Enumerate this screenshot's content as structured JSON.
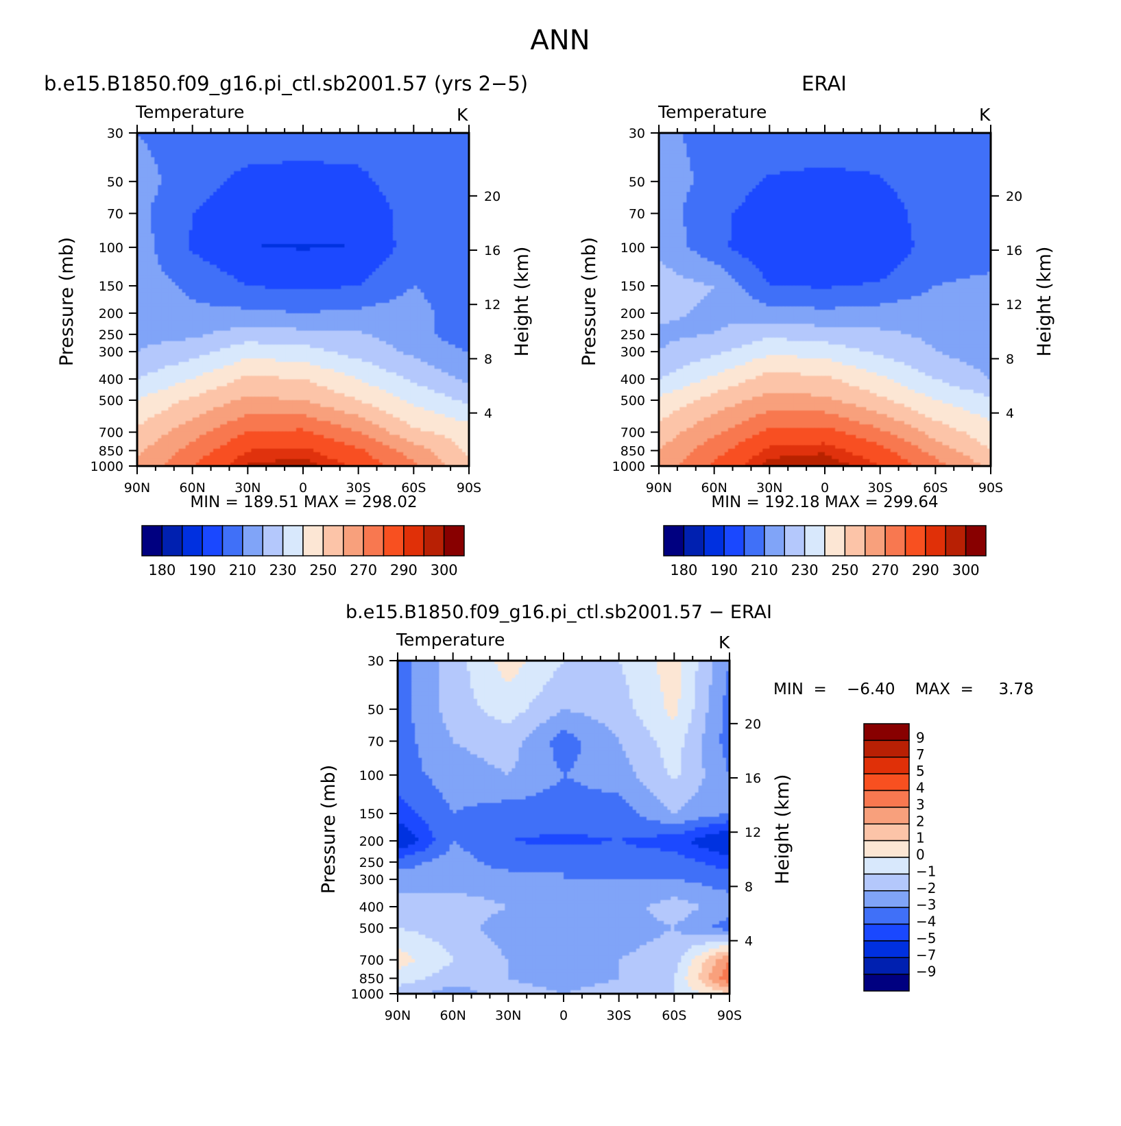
{
  "page_title": "ANN",
  "colors": {
    "temperature_scale": [
      "#000080",
      "#0020b0",
      "#0030e0",
      "#1a48ff",
      "#4070f8",
      "#80a4f8",
      "#b4c8fc",
      "#d8e8fc",
      "#fce6d4",
      "#fcc4a8",
      "#f8a07c",
      "#f87850",
      "#f85020",
      "#e03008",
      "#b82004",
      "#880000"
    ],
    "difference_scale": [
      "#000080",
      "#0020b0",
      "#0030e0",
      "#1a48ff",
      "#4070f8",
      "#80a4f8",
      "#b4c8fc",
      "#d8e8fc",
      "#fce6d4",
      "#fcc4a8",
      "#f8a07c",
      "#f87850",
      "#f85020",
      "#e03008",
      "#b82004",
      "#880000"
    ]
  },
  "panels": {
    "model": {
      "title": "b.e15.B1850.f09_g16.pi_ctl.sb2001.57 (yrs 2−5)",
      "variable_label": "Temperature",
      "units": "K",
      "min_max_text": "MIN  =  189.51    MAX  =  298.02"
    },
    "obs": {
      "title": "ERAI",
      "variable_label": "Temperature",
      "units": "K",
      "min_max_text": "MIN  =  192.18    MAX  =  299.64"
    },
    "diff": {
      "title": "b.e15.B1850.f09_g16.pi_ctl.sb2001.57  −  ERAI",
      "variable_label": "Temperature",
      "units": "K",
      "min_max_text": "MIN  =    −6.40    MAX  =     3.78"
    }
  },
  "axes": {
    "y_label": "Pressure  (mb)",
    "y2_label": "Height  (km)",
    "pressure_ticks": [
      "30",
      "50",
      "70",
      "100",
      "150",
      "200",
      "250",
      "300",
      "400",
      "500",
      "700",
      "850",
      "1000"
    ],
    "height_ticks": [
      "20",
      "16",
      "12",
      "8",
      "4"
    ],
    "lat_ticks": [
      "90N",
      "60N",
      "30N",
      "0",
      "30S",
      "60S",
      "90S"
    ]
  },
  "colorbars": {
    "temperature_labels": [
      "180",
      "190",
      "210",
      "230",
      "250",
      "270",
      "290",
      "300"
    ],
    "difference_labels": [
      "9",
      "7",
      "5",
      "4",
      "3",
      "2",
      "1",
      "0",
      "−1",
      "−2",
      "−3",
      "−4",
      "−5",
      "−7",
      "−9"
    ]
  },
  "chart_data": [
    {
      "type": "heatmap",
      "title": "b.e15.B1850.f09_g16.pi_ctl.sb2001.57 (yrs 2−5)",
      "subtitle": "Temperature",
      "units": "K",
      "xlabel": "",
      "ylabel": "Pressure  (mb)",
      "y2label": "Height  (km)",
      "x": [
        90,
        60,
        30,
        0,
        -30,
        -60,
        -90
      ],
      "x_tick_labels": [
        "90N",
        "60N",
        "30N",
        "0",
        "30S",
        "60S",
        "90S"
      ],
      "y_pressure": [
        30,
        50,
        70,
        100,
        150,
        200,
        250,
        300,
        400,
        500,
        700,
        850,
        1000
      ],
      "z": [
        [
          210,
          205,
          206,
          207,
          206,
          210,
          202
        ],
        [
          214,
          205,
          197,
          195,
          197,
          207,
          202
        ],
        [
          213,
          200,
          192,
          193,
          192,
          205,
          202
        ],
        [
          215,
          199,
          190,
          189.5,
          190,
          205,
          202
        ],
        [
          215,
          208,
          200,
          198,
          200,
          210,
          202
        ],
        [
          216,
          212,
          212,
          210,
          212,
          215,
          202
        ],
        [
          217,
          218,
          225,
          223,
          221,
          215,
          202
        ],
        [
          220,
          226,
          236,
          234,
          226,
          218,
          210
        ],
        [
          230,
          240,
          252,
          250,
          240,
          228,
          218
        ],
        [
          240,
          252,
          262,
          260,
          250,
          238,
          228
        ],
        [
          252,
          266,
          280,
          282,
          270,
          252,
          245
        ],
        [
          258,
          274,
          290,
          292,
          282,
          265,
          248
        ],
        [
          262,
          280,
          296,
          298,
          288,
          272,
          252
        ]
      ],
      "zrange": [
        189.51,
        298.02
      ],
      "colorbar_levels": [
        180,
        185,
        190,
        200,
        210,
        220,
        230,
        240,
        250,
        260,
        270,
        280,
        290,
        295,
        300
      ],
      "grid": false
    },
    {
      "type": "heatmap",
      "title": "ERAI",
      "subtitle": "Temperature",
      "units": "K",
      "xlabel": "",
      "ylabel": "Pressure  (mb)",
      "y2label": "Height  (km)",
      "x": [
        90,
        60,
        30,
        0,
        -30,
        -60,
        -90
      ],
      "x_tick_labels": [
        "90N",
        "60N",
        "30N",
        "0",
        "30S",
        "60S",
        "90S"
      ],
      "y_pressure": [
        30,
        50,
        70,
        100,
        150,
        200,
        250,
        300,
        400,
        500,
        700,
        850,
        1000
      ],
      "z": [
        [
          212,
          207,
          206,
          207,
          206,
          208,
          203
        ],
        [
          215,
          207,
          199,
          197,
          199,
          208,
          203
        ],
        [
          215,
          203,
          194,
          193,
          194,
          206,
          203
        ],
        [
          218,
          203,
          192,
          192.2,
          192,
          205,
          206
        ],
        [
          225,
          220,
          200,
          199,
          201,
          210,
          212
        ],
        [
          222,
          218,
          214,
          212,
          214,
          216,
          214
        ],
        [
          218,
          220,
          228,
          225,
          222,
          218,
          214
        ],
        [
          220,
          228,
          238,
          236,
          228,
          220,
          214
        ],
        [
          230,
          242,
          254,
          252,
          242,
          230,
          220
        ],
        [
          242,
          254,
          264,
          262,
          252,
          240,
          232
        ],
        [
          254,
          268,
          282,
          284,
          272,
          256,
          244
        ],
        [
          260,
          276,
          292,
          294,
          284,
          266,
          250
        ],
        [
          264,
          282,
          298,
          299.6,
          290,
          274,
          258
        ]
      ],
      "zrange": [
        192.18,
        299.64
      ],
      "colorbar_levels": [
        180,
        185,
        190,
        200,
        210,
        220,
        230,
        240,
        250,
        260,
        270,
        280,
        290,
        295,
        300
      ],
      "grid": false
    },
    {
      "type": "heatmap",
      "title": "b.e15.B1850.f09_g16.pi_ctl.sb2001.57  −  ERAI",
      "subtitle": "Temperature",
      "units": "K",
      "xlabel": "",
      "ylabel": "Pressure  (mb)",
      "y2label": "Height  (km)",
      "x": [
        90,
        60,
        30,
        0,
        -30,
        -60,
        -90
      ],
      "x_tick_labels": [
        "90N",
        "60N",
        "30N",
        "0",
        "30S",
        "60S",
        "90S"
      ],
      "y_pressure": [
        30,
        50,
        70,
        100,
        150,
        200,
        250,
        300,
        400,
        500,
        700,
        850,
        1000
      ],
      "z": [
        [
          -3.5,
          -1.5,
          0.5,
          -1.0,
          -1.0,
          0.5,
          -3.0
        ],
        [
          -3.5,
          -1.5,
          -0.5,
          -2.0,
          -1.5,
          0.3,
          -3.5
        ],
        [
          -3.5,
          -2.0,
          -1.5,
          -3.5,
          -2.0,
          -0.5,
          -3.5
        ],
        [
          -3.5,
          -2.5,
          -2.0,
          -3.0,
          -2.5,
          -0.8,
          -3.0
        ],
        [
          -4.5,
          -3.0,
          -3.5,
          -3.5,
          -3.5,
          -2.0,
          -3.0
        ],
        [
          -6.2,
          -3.0,
          -4.0,
          -4.2,
          -4.0,
          -4.5,
          -6.4
        ],
        [
          -3.5,
          -2.5,
          -3.5,
          -3.0,
          -3.5,
          -3.5,
          -4.5
        ],
        [
          -2.5,
          -2.5,
          -2.5,
          -3.0,
          -3.0,
          -3.0,
          -3.5
        ],
        [
          -1.5,
          -1.5,
          -2.0,
          -2.5,
          -2.5,
          -1.5,
          -2.5
        ],
        [
          -1.0,
          -1.5,
          -2.5,
          -2.5,
          -2.5,
          -2.0,
          -3.5
        ],
        [
          0.5,
          -1.0,
          -2.0,
          -2.0,
          -2.0,
          -1.5,
          3.0
        ],
        [
          -0.5,
          -1.5,
          -2.0,
          -2.5,
          -2.0,
          -1.0,
          3.78
        ],
        [
          -1.5,
          -2.5,
          -1.5,
          -2.0,
          -1.5,
          -1.0,
          1.0
        ]
      ],
      "zrange": [
        -6.4,
        3.78
      ],
      "colorbar_levels": [
        -9,
        -7,
        -5,
        -4,
        -3,
        -2,
        -1,
        0,
        1,
        2,
        3,
        4,
        5,
        7,
        9
      ],
      "grid": false
    }
  ]
}
